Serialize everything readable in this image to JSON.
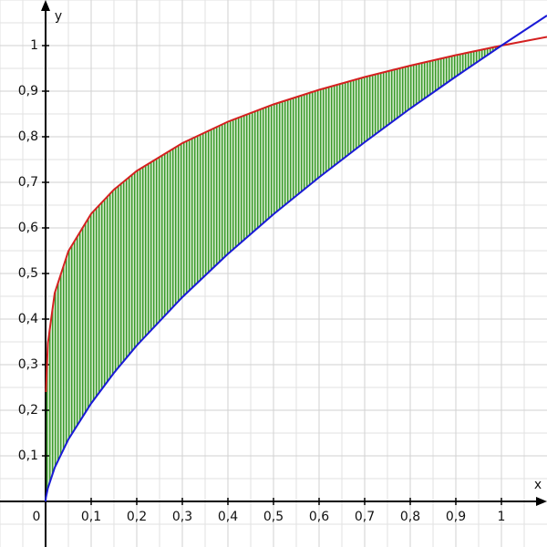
{
  "chart_data": {
    "type": "line",
    "x_label": "x",
    "y_label": "y",
    "x": [
      0,
      0.0008,
      0.005,
      0.02,
      0.05,
      0.1,
      0.15,
      0.2,
      0.3,
      0.4,
      0.5,
      0.6,
      0.7,
      0.8,
      0.9,
      1,
      1.1
    ],
    "series": [
      {
        "color": "#d42020",
        "values": [
          null,
          0.24,
          0.347,
          0.457,
          0.549,
          0.631,
          0.684,
          0.725,
          0.786,
          0.833,
          0.871,
          0.903,
          0.931,
          0.956,
          0.979,
          1,
          1.019
        ]
      },
      {
        "color": "#1a1ad6",
        "values": [
          0,
          0.0086,
          0.029,
          0.074,
          0.136,
          0.215,
          0.282,
          0.342,
          0.448,
          0.543,
          0.63,
          0.711,
          0.788,
          0.862,
          0.932,
          1,
          1.066
        ]
      }
    ],
    "fill_color": "#3a9a2a",
    "xlim": [
      -0.1,
      1.1
    ],
    "ylim": [
      -0.1,
      1.1
    ],
    "xticks": [
      0,
      {
        "value": 0.1,
        "label": "0,1"
      },
      {
        "value": 0.2,
        "label": "0,2"
      },
      {
        "value": 0.3,
        "label": "0,3"
      },
      {
        "value": 0.4,
        "label": "0,4"
      },
      {
        "value": 0.5,
        "label": "0,5"
      },
      {
        "value": 0.6,
        "label": "0,6"
      },
      {
        "value": 0.7,
        "label": "0,7"
      },
      {
        "value": 0.8,
        "label": "0,8"
      },
      {
        "value": 0.9,
        "label": "0,9"
      },
      1
    ],
    "yticks": [
      {
        "value": 0.1,
        "label": "0,1"
      },
      {
        "value": 0.2,
        "label": "0,2"
      },
      {
        "value": 0.3,
        "label": "0,3"
      },
      {
        "value": 0.4,
        "label": "0,4"
      },
      {
        "value": 0.5,
        "label": "0,5"
      },
      {
        "value": 0.6,
        "label": "0,6"
      },
      {
        "value": 0.7,
        "label": "0,7"
      },
      {
        "value": 0.8,
        "label": "0,8"
      },
      {
        "value": 0.9,
        "label": "0,9"
      },
      1
    ],
    "grid": true
  }
}
